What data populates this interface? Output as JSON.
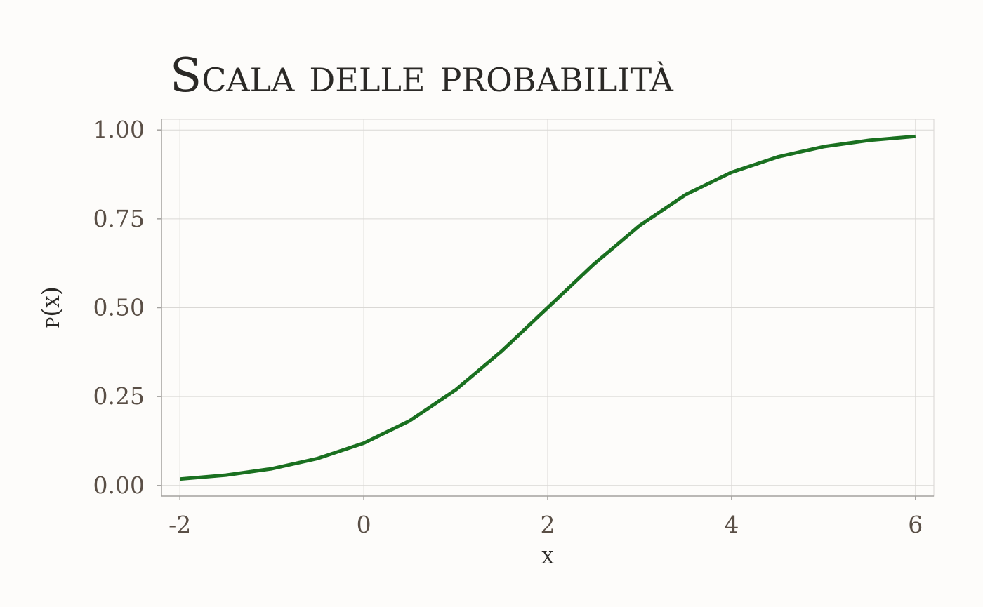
{
  "chart_data": {
    "type": "line",
    "title": "Scala delle probabilità",
    "xlabel": "x",
    "ylabel": "p(x)",
    "xlim": [
      -2.2,
      6.2
    ],
    "ylim": [
      -0.03,
      1.03
    ],
    "x_ticks": [
      {
        "value": -2,
        "label": "-2"
      },
      {
        "value": 0,
        "label": "0"
      },
      {
        "value": 2,
        "label": "2"
      },
      {
        "value": 4,
        "label": "4"
      },
      {
        "value": 6,
        "label": "6"
      }
    ],
    "y_ticks": [
      {
        "value": 0.0,
        "label": "0.00"
      },
      {
        "value": 0.25,
        "label": "0.25"
      },
      {
        "value": 0.5,
        "label": "0.50"
      },
      {
        "value": 0.75,
        "label": "0.75"
      },
      {
        "value": 1.0,
        "label": "1.00"
      }
    ],
    "grid": true,
    "legend": "none",
    "series": [
      {
        "color": "#1a7020",
        "x": [
          -2,
          -1.5,
          -1,
          -0.5,
          0,
          0.5,
          1,
          1.5,
          2,
          2.5,
          3,
          3.5,
          4,
          4.5,
          5,
          5.5,
          6
        ],
        "y": [
          0.018,
          0.029,
          0.047,
          0.076,
          0.119,
          0.182,
          0.269,
          0.378,
          0.5,
          0.622,
          0.731,
          0.818,
          0.881,
          0.924,
          0.953,
          0.971,
          0.982
        ]
      }
    ]
  }
}
